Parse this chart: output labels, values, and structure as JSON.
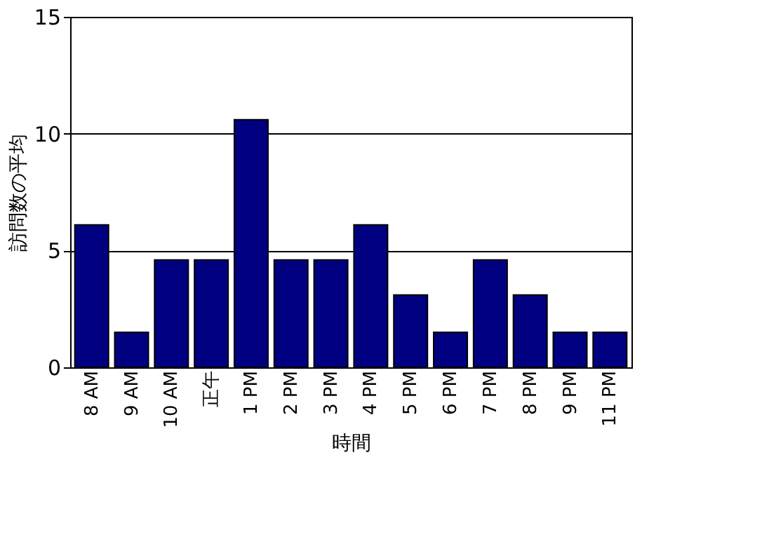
{
  "chart_data": {
    "type": "bar",
    "xlabel": "時間",
    "ylabel": "訪問数の平均",
    "categories": [
      "8 AM",
      "9 AM",
      "10 AM",
      "正午",
      "1 PM",
      "2 PM",
      "3 PM",
      "4 PM",
      "5 PM",
      "6 PM",
      "7 PM",
      "8 PM",
      "9 PM",
      "11 PM"
    ],
    "values": [
      6.1,
      1.5,
      4.6,
      4.6,
      10.6,
      4.6,
      4.6,
      6.1,
      3.1,
      1.5,
      4.6,
      3.1,
      1.5,
      1.5
    ],
    "color": "#000080",
    "ylim": [
      0,
      15
    ],
    "yticks": [
      0,
      5,
      10,
      15
    ],
    "grid": "y"
  }
}
